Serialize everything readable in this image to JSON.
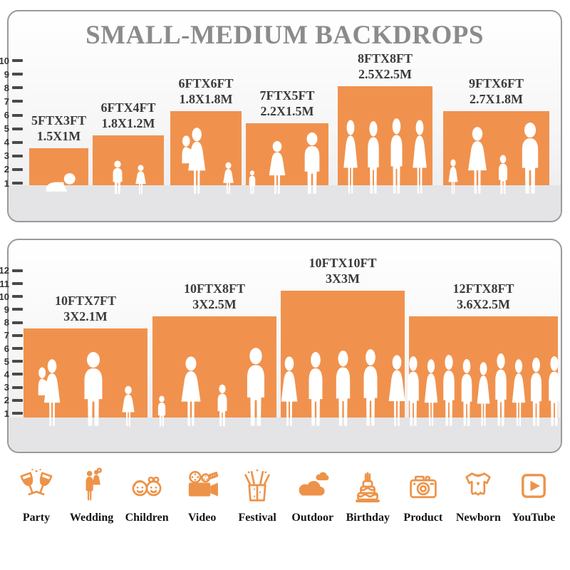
{
  "title": "SMALL-MEDIUM BACKDROPS",
  "colors": {
    "bar_orange": "#F0924E",
    "icon_orange": "#ED9349",
    "title_gray": "#8B8B8B",
    "label_dark": "#3B3B3B",
    "tick": "#4A4A4A",
    "panel_border": "#9A9A9A",
    "floor_gray": "#E4E4E6"
  },
  "panels": [
    {
      "ruler": {
        "min": 1,
        "max": 10
      },
      "bars": [
        {
          "size_ft": "5FTX3FT",
          "size_m": "1.5X1M",
          "width_ft": 5,
          "height_ft": 3,
          "figures": "crawling-baby"
        },
        {
          "size_ft": "6FTX4FT",
          "size_m": "1.8X1.2M",
          "width_ft": 6,
          "height_ft": 4,
          "figures": "boy-and-girl"
        },
        {
          "size_ft": "6FTX6FT",
          "size_m": "1.8X1.8M",
          "width_ft": 6,
          "height_ft": 6,
          "figures": "mother-holding-child-and-girl"
        },
        {
          "size_ft": "7FTX5FT",
          "size_m": "2.2X1.5M",
          "width_ft": 7,
          "height_ft": 5,
          "figures": "toddler-woman-man"
        },
        {
          "size_ft": "8FTX8FT",
          "size_m": "2.5X2.5M",
          "width_ft": 8,
          "height_ft": 8,
          "figures": "four-adults-posing"
        },
        {
          "size_ft": "9FTX6FT",
          "size_m": "2.7X1.8M",
          "width_ft": 9,
          "height_ft": 6,
          "figures": "family-of-four"
        }
      ]
    },
    {
      "ruler": {
        "min": 1,
        "max": 12
      },
      "bars": [
        {
          "size_ft": "10FTX7FT",
          "size_m": "3X2.1M",
          "width_ft": 10,
          "height_ft": 7,
          "figures": "mother-child-man-girl"
        },
        {
          "size_ft": "10FTX8FT",
          "size_m": "3X2.5M",
          "width_ft": 10,
          "height_ft": 8,
          "figures": "family-of-four"
        },
        {
          "size_ft": "10FTX10FT",
          "size_m": "3X3M",
          "width_ft": 10,
          "height_ft": 10,
          "figures": "five-adults-posing"
        },
        {
          "size_ft": "12FTX8FT",
          "size_m": "3.6X2.5M",
          "width_ft": 12,
          "height_ft": 8,
          "figures": "crowd-of-people"
        }
      ]
    }
  ],
  "categories": [
    {
      "label": "Party"
    },
    {
      "label": "Wedding"
    },
    {
      "label": "Children"
    },
    {
      "label": "Video"
    },
    {
      "label": "Festival"
    },
    {
      "label": "Outdoor"
    },
    {
      "label": "Birthday"
    },
    {
      "label": "Product"
    },
    {
      "label": "Newborn"
    },
    {
      "label": "YouTube"
    }
  ],
  "chart_data": [
    {
      "type": "bar",
      "title": "SMALL-MEDIUM BACKDROPS",
      "categories": [
        "5FTX3FT (1.5X1M)",
        "6FTX4FT (1.8X1.2M)",
        "6FTX6FT (1.8X1.8M)",
        "7FTX5FT (2.2X1.5M)",
        "8FTX8FT (2.5X2.5M)",
        "9FTX6FT (2.7X1.8M)"
      ],
      "values": [
        3,
        4,
        6,
        5,
        8,
        6
      ],
      "bar_widths_ft": [
        5,
        6,
        6,
        7,
        8,
        9
      ],
      "xlabel": "",
      "ylabel": "height (ft ruler)",
      "ylim": [
        0,
        10
      ],
      "grid": false,
      "legend_position": "none"
    },
    {
      "type": "bar",
      "title": "",
      "categories": [
        "10FTX7FT (3X2.1M)",
        "10FTX8FT (3X2.5M)",
        "10FTX10FT (3X3M)",
        "12FTX8FT (3.6X2.5M)"
      ],
      "values": [
        7,
        8,
        10,
        8
      ],
      "bar_widths_ft": [
        10,
        10,
        10,
        12
      ],
      "xlabel": "",
      "ylabel": "height (ft ruler)",
      "ylim": [
        0,
        12
      ],
      "grid": false,
      "legend_position": "none"
    }
  ]
}
